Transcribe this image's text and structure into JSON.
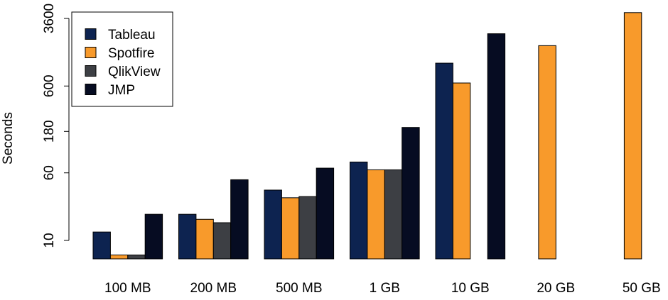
{
  "chart_data": {
    "type": "bar",
    "title": "",
    "xlabel": "",
    "ylabel": "Seconds",
    "yscale": "log",
    "yticks": [
      10,
      60,
      180,
      600,
      3600
    ],
    "ytick_labels": [
      "10",
      "60",
      "180",
      "600",
      "3600"
    ],
    "categories": [
      "100 MB",
      "200 MB",
      "500 MB",
      "1 GB",
      "10 GB",
      "20 GB",
      "50 GB"
    ],
    "series": [
      {
        "name": "Tableau",
        "color": "#0d2350",
        "values": [
          12.5,
          20,
          38,
          80,
          1100,
          null,
          null
        ]
      },
      {
        "name": "Spotfire",
        "color": "#f89a2b",
        "values": [
          6.8,
          17.5,
          31,
          65,
          650,
          1750,
          4200
        ]
      },
      {
        "name": "QlikView",
        "color": "#3d3f44",
        "values": [
          6.8,
          16,
          32,
          65,
          null,
          null,
          null
        ]
      },
      {
        "name": "JMP",
        "color": "#060c22",
        "values": [
          20,
          50,
          68,
          200,
          2400,
          null,
          null
        ]
      }
    ],
    "legend_position": "top-left",
    "grid": false
  }
}
